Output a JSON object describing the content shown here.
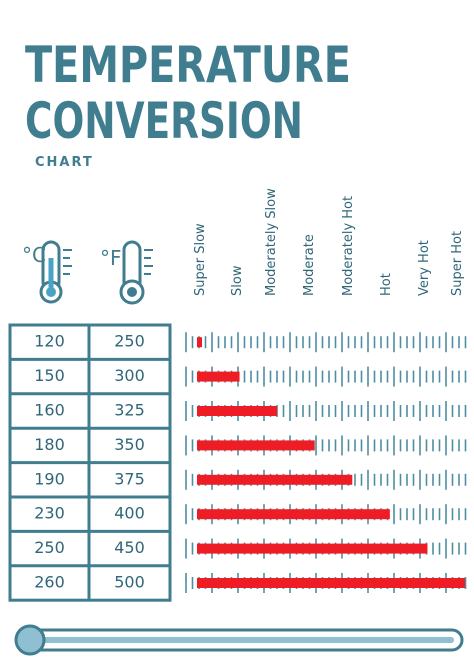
{
  "header": {
    "title_line1": "TEMPERATURE",
    "title_line2": "CONVERSION",
    "subtitle": "CHART"
  },
  "unit_icons": [
    "°C",
    "°F"
  ],
  "levels": [
    "Super Slow",
    "Slow",
    "Moderately Slow",
    "Moderate",
    "Moderately Hot",
    "Hot",
    "Very Hot",
    "Super Hot"
  ],
  "table": {
    "rows": [
      [
        120,
        250
      ],
      [
        150,
        300
      ],
      [
        160,
        325
      ],
      [
        180,
        350
      ],
      [
        190,
        375
      ],
      [
        230,
        400
      ],
      [
        250,
        450
      ],
      [
        260,
        500
      ]
    ]
  }
}
